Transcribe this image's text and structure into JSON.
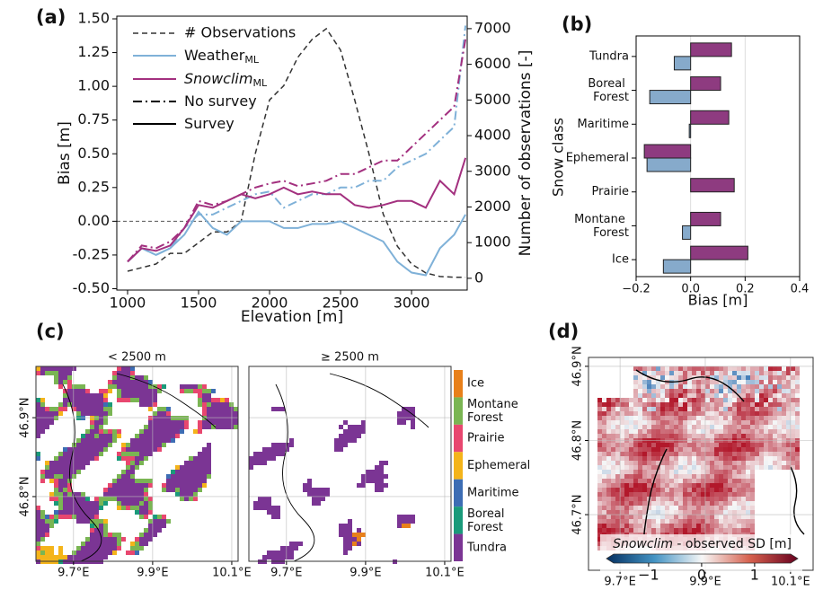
{
  "chart_data": [
    {
      "type": "line",
      "panel_label": "(a)",
      "xlabel": "Elevation [m]",
      "ylabel": "Bias [m]",
      "y2label": "Number of observations [-]",
      "x": [
        1000,
        1100,
        1200,
        1300,
        1400,
        1500,
        1600,
        1700,
        1800,
        1900,
        2000,
        2100,
        2200,
        2300,
        2400,
        2500,
        2600,
        2700,
        2800,
        2900,
        3000,
        3100,
        3200,
        3300,
        3380
      ],
      "xlim": [
        924,
        3392
      ],
      "xticks": [
        1000,
        1500,
        2000,
        2500,
        3000
      ],
      "ylim": [
        -0.51,
        1.52
      ],
      "yticks": [
        {
          "value": -0.5,
          "label": "-0.50"
        },
        {
          "value": -0.25,
          "label": "-0.25"
        },
        {
          "value": 0,
          "label": "0.00"
        },
        {
          "value": 0.25,
          "label": "0.25"
        },
        {
          "value": 0.5,
          "label": "0.50"
        },
        {
          "value": 0.75,
          "label": "0.75"
        },
        {
          "value": 1,
          "label": "1.00"
        },
        {
          "value": 1.25,
          "label": "1.25"
        },
        {
          "value": 1.5,
          "label": "1.50"
        }
      ],
      "y2lim": [
        -330,
        7350
      ],
      "y2ticks": [
        0,
        1000,
        2000,
        3000,
        4000,
        5000,
        6000,
        7000
      ],
      "zero_line": true,
      "legend": [
        {
          "name": "Weather",
          "sub": "ML",
          "color": "#7fb1d8"
        },
        {
          "name": "Snowclim",
          "sub": "ML",
          "color": "#a3307f",
          "italic": true
        },
        {
          "name": "No survey",
          "dash": "dashdot"
        },
        {
          "name": "Survey",
          "dash": "solid"
        }
      ],
      "series": [
        {
          "name": "# Observations",
          "axis": "y2",
          "color": "#333333",
          "dash": "dashed",
          "values": [
            200,
            300,
            400,
            700,
            700,
            1000,
            1300,
            1300,
            1600,
            3500,
            5000,
            5400,
            6200,
            6700,
            7000,
            6400,
            5000,
            3500,
            1800,
            900,
            400,
            150,
            50,
            30,
            30
          ]
        },
        {
          "legend_entry": [
            0,
            2
          ],
          "values": [
            -0.3,
            -0.2,
            -0.25,
            -0.2,
            -0.05,
            0.05,
            0.05,
            0.1,
            0.15,
            0.2,
            0.22,
            0.1,
            0.15,
            0.2,
            0.2,
            0.25,
            0.25,
            0.3,
            0.3,
            0.4,
            0.45,
            0.5,
            0.6,
            0.7,
            1.45
          ]
        },
        {
          "legend_entry": [
            0,
            3
          ],
          "values": [
            -0.3,
            -0.2,
            -0.25,
            -0.2,
            -0.1,
            0.07,
            -0.05,
            -0.1,
            0.0,
            0.0,
            0.0,
            -0.05,
            -0.05,
            -0.02,
            -0.02,
            0.0,
            -0.05,
            -0.1,
            -0.15,
            -0.3,
            -0.38,
            -0.4,
            -0.2,
            -0.1,
            0.05
          ]
        },
        {
          "legend_entry": [
            1,
            2
          ],
          "values": [
            -0.3,
            -0.18,
            -0.2,
            -0.15,
            -0.05,
            0.15,
            0.12,
            0.15,
            0.2,
            0.25,
            0.28,
            0.3,
            0.26,
            0.28,
            0.3,
            0.35,
            0.35,
            0.4,
            0.45,
            0.45,
            0.55,
            0.65,
            0.75,
            0.85,
            1.35
          ]
        },
        {
          "legend_entry": [
            1,
            3
          ],
          "values": [
            -0.3,
            -0.2,
            -0.22,
            -0.18,
            -0.05,
            0.12,
            0.1,
            0.15,
            0.2,
            0.17,
            0.2,
            0.25,
            0.2,
            0.22,
            0.2,
            0.2,
            0.12,
            0.1,
            0.12,
            0.15,
            0.15,
            0.1,
            0.3,
            0.2,
            0.47
          ]
        }
      ]
    },
    {
      "type": "hbar",
      "panel_label": "(b)",
      "xlabel": "Bias [m]",
      "ylabel": "Snow class",
      "categories": [
        "Tundra",
        "Boreal Forest",
        "Maritime",
        "Ephemeral",
        "Prairie",
        "Montane Forest",
        "Ice"
      ],
      "series": [
        {
          "color": "#8e3b80",
          "values": [
            0.15,
            0.11,
            0.14,
            -0.17,
            0.16,
            0.11,
            0.21
          ]
        },
        {
          "color": "#86aacb",
          "values": [
            -0.06,
            -0.15,
            -0.005,
            -0.16,
            0,
            -0.03,
            -0.1
          ]
        }
      ],
      "xlim": [
        -0.2,
        0.4
      ],
      "xticks": [
        {
          "value": -0.2,
          "label": "−0.2"
        },
        {
          "value": 0,
          "label": "0.0"
        },
        {
          "value": 0.2,
          "label": "0.2"
        },
        {
          "value": 0.4,
          "label": "0.4"
        }
      ],
      "grid": true
    },
    {
      "type": "map",
      "panel_label": "(c)",
      "panels": [
        {
          "title": "< 2500 m"
        },
        {
          "title": "≥ 2500 m"
        }
      ],
      "classes": [
        {
          "name": "Ice",
          "color": "#e8801a"
        },
        {
          "name": "Montane Forest",
          "color": "#7ab553"
        },
        {
          "name": "Prairie",
          "color": "#e8476f"
        },
        {
          "name": "Ephemeral",
          "color": "#f4b41a"
        },
        {
          "name": "Maritime",
          "color": "#3d6db4"
        },
        {
          "name": "Boreal Forest",
          "color": "#1a9a7a"
        },
        {
          "name": "Tundra",
          "color": "#7b3594"
        }
      ],
      "xlim": [
        9.605,
        10.116
      ],
      "ylim": [
        46.718,
        46.965
      ],
      "xticks": [
        {
          "value": 9.7,
          "label": "9.7°E"
        },
        {
          "value": 9.9,
          "label": "9.9°E"
        },
        {
          "value": 10.1,
          "label": "10.1°E"
        }
      ],
      "yticks": [
        {
          "value": 46.8,
          "label": "46.8°N"
        },
        {
          "value": 46.9,
          "label": "46.9°N"
        }
      ]
    },
    {
      "type": "map",
      "panel_label": "(d)",
      "xlim": [
        9.626,
        10.153
      ],
      "ylim": [
        46.625,
        46.912
      ],
      "xticks": [
        {
          "value": 9.7,
          "label": "9.7°E"
        },
        {
          "value": 9.9,
          "label": "9.9°E"
        },
        {
          "value": 10.1,
          "label": "10.1°E"
        }
      ],
      "yticks": [
        {
          "value": 46.7,
          "label": "46.7°N"
        },
        {
          "value": 46.8,
          "label": "46.8°N"
        },
        {
          "value": 46.9,
          "label": "46.9°N"
        }
      ],
      "colorbar": {
        "label_italic": "Snowclim",
        "label": " - observed SD [m]",
        "lim": [
          -1.66,
          1.68
        ],
        "ticks": [
          {
            "value": -1,
            "label": "−1"
          },
          0,
          1
        ]
      }
    }
  ]
}
